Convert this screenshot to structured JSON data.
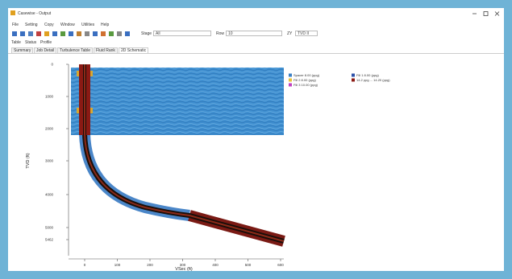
{
  "window": {
    "title": "Casewise - Output"
  },
  "menu": [
    "File",
    "Setting",
    "Copy",
    "Window",
    "Utilities",
    "Help"
  ],
  "toolbar": {
    "stage_label": "Stage",
    "stage_value": "All",
    "row_label": "Row",
    "row_value": "10",
    "zoom_label": "ZY",
    "zoom_value": "TVD II"
  },
  "tabs": [
    "Table",
    "Status",
    "Profile"
  ],
  "subtabs": [
    "Summary",
    "Job Detail",
    "Turbulence Table",
    "Fluid Rank",
    "2D Schematic"
  ],
  "plot": {
    "y_title": "TVD (ft)",
    "x_title": "VSec (ft)",
    "y_ticks": [
      "0",
      "1000",
      "2000",
      "3000",
      "4000",
      "5000",
      "5462"
    ],
    "x_ticks": [
      "0",
      "100",
      "200",
      "300",
      "400",
      "500",
      "600"
    ],
    "legend": [
      {
        "label": "Spacer 8.00 (ppg)",
        "color": "#3a7fc4"
      },
      {
        "label": "Fill 2 8.00 (ppg)",
        "color": "#e8c23a"
      },
      {
        "label": "Fill 3 10.00 (ppg)",
        "color": "#c040c0"
      },
      {
        "label": "Fill 1 8.00 (ppg)",
        "color": "#2a4fa8"
      },
      {
        "label": "14.2 ppg ... 14.20 (ppg)",
        "color": "#8b1a14"
      }
    ]
  }
}
